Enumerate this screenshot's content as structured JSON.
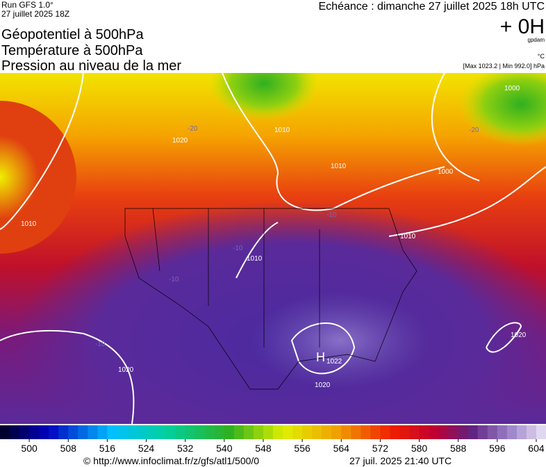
{
  "header": {
    "run": "Run GFS 1.0°",
    "run_date": "27 juillet 2025 18Z",
    "echeance": "Echéance : dimanche 27 juillet 2025 18h UTC",
    "offset": "+ 0H",
    "unit_geo": "gpdam",
    "unit_temp": "°C",
    "pressure_range": "[Max 1023.2 | Min 992.0] hPa",
    "titles": [
      "Géopotentiel à 500hPa",
      "Température à 500hPa",
      "Pression au niveau de la mer"
    ]
  },
  "map": {
    "isobar_labels": [
      "1020",
      "1010",
      "1010",
      "1010",
      "1010",
      "1000",
      "1000",
      "1010",
      "1020",
      "1022",
      "1020",
      "1020"
    ],
    "high": "H",
    "temp_labels": [
      "-20",
      "-20",
      "-10",
      "-10",
      "-10",
      "-10"
    ]
  },
  "colorbar": {
    "lim": [
      494,
      606
    ],
    "ticks": [
      500,
      508,
      516,
      524,
      532,
      540,
      548,
      556,
      564,
      572,
      580,
      588,
      596,
      604
    ]
  },
  "footer": {
    "source": "© http://www.infoclimat.fr/z/gfs/atl1/500/0",
    "generated": "27 juil. 2025 21:40 UTC"
  }
}
